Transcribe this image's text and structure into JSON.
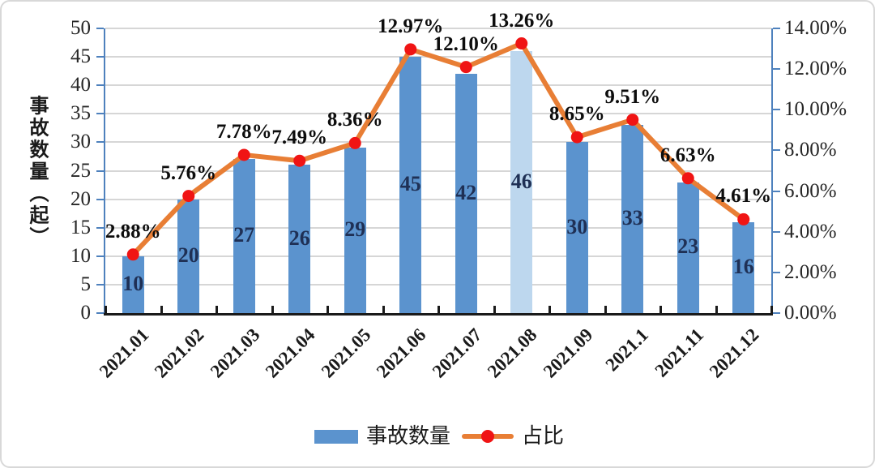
{
  "chart_data": {
    "type": "combo",
    "title": "",
    "categories": [
      "2021.01",
      "2021.02",
      "2021.03",
      "2021.04",
      "2021.05",
      "2021.06",
      "2021.07",
      "2021.08",
      "2021.09",
      "2021.1",
      "2021.11",
      "2021.12"
    ],
    "series": [
      {
        "name": "事故数量",
        "type": "bar",
        "yaxis": "left",
        "values": [
          10,
          20,
          27,
          26,
          29,
          45,
          42,
          46,
          30,
          33,
          23,
          16
        ],
        "labels": [
          "10",
          "20",
          "27",
          "26",
          "29",
          "45",
          "42",
          "46",
          "30",
          "33",
          "23",
          "16"
        ]
      },
      {
        "name": "占比",
        "type": "line",
        "yaxis": "right",
        "values": [
          2.88,
          5.76,
          7.78,
          7.49,
          8.36,
          12.97,
          12.1,
          13.26,
          8.65,
          9.51,
          6.63,
          4.61
        ],
        "labels": [
          "2.88%",
          "5.76%",
          "7.78%",
          "7.49%",
          "8.36%",
          "12.97%",
          "12.10%",
          "13.26%",
          "8.65%",
          "9.51%",
          "6.63%",
          "4.61%"
        ]
      }
    ],
    "left_axis": {
      "title": "事故数量（起）",
      "min": 0,
      "max": 50,
      "step": 5,
      "tick_labels": [
        "0",
        "5",
        "10",
        "15",
        "20",
        "25",
        "30",
        "35",
        "40",
        "45",
        "50"
      ]
    },
    "right_axis": {
      "min": 0,
      "max": 14,
      "step": 2,
      "tick_labels": [
        "0.00%",
        "2.00%",
        "4.00%",
        "6.00%",
        "8.00%",
        "10.00%",
        "12.00%",
        "14.00%"
      ]
    },
    "highlight_index": 7,
    "grid": true,
    "legend_position": "bottom",
    "legend": [
      {
        "label": "事故数量",
        "swatch": "bar"
      },
      {
        "label": "占比",
        "swatch": "line"
      }
    ],
    "colors": {
      "bar": "#5b93ce",
      "bar_highlight": "#bdd7ee",
      "line": "#e87e35",
      "marker": "#f01414",
      "grid": "#d6d6d6",
      "value_axis": "#4e81bd",
      "x_axis": "#1a1a1a"
    }
  }
}
